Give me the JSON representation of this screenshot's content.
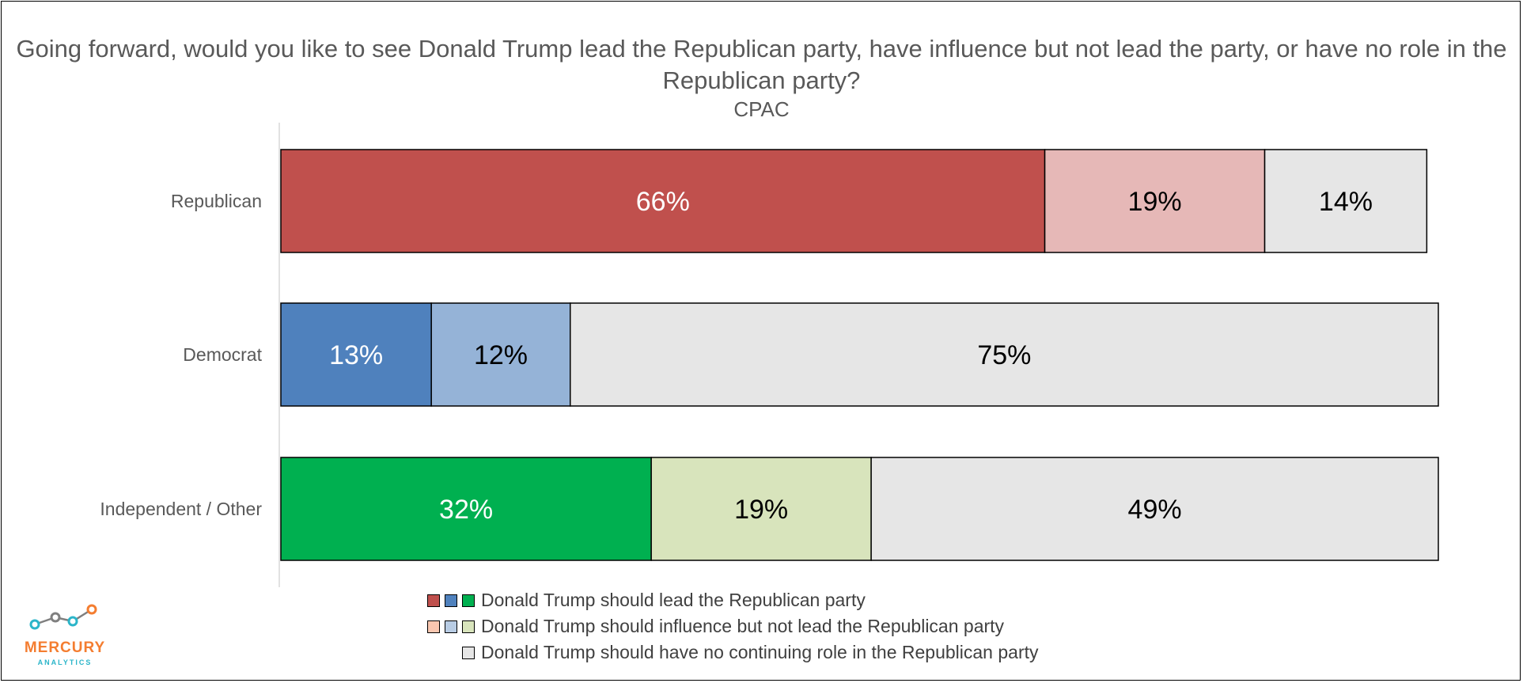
{
  "chart_data": {
    "type": "bar",
    "orientation": "horizontal",
    "stacked": true,
    "title": "Going forward, would you like to see Donald Trump lead the Republican party, have influence but not lead the party, or have no role in the Republican party?",
    "subtitle": "CPAC",
    "categories": [
      "Republican",
      "Democrat",
      "Independent / Other"
    ],
    "series": [
      {
        "name": "Donald Trump should lead the Republican party",
        "values": [
          66,
          13,
          32
        ],
        "colors": [
          "#c0504d",
          "#4f81bd",
          "#00b050"
        ],
        "label_color": "#ffffff"
      },
      {
        "name": "Donald Trump should influence but not lead the Republican party",
        "values": [
          19,
          12,
          19
        ],
        "colors": [
          "#e6b8b7",
          "#95b3d7",
          "#d8e4bc"
        ],
        "label_color": "#000000"
      },
      {
        "name": "Donald Trump should have no continuing role in the Republican party",
        "values": [
          14,
          75,
          49
        ],
        "colors": [
          "#e6e6e6",
          "#e6e6e6",
          "#e6e6e6"
        ],
        "label_color": "#000000"
      }
    ],
    "value_suffix": "%",
    "xlim": [
      0,
      100
    ],
    "grid": false,
    "legend": "bottom"
  },
  "legend": [
    {
      "label": "Donald Trump should lead the Republican party",
      "swatches": [
        "#c0504d",
        "#4f81bd",
        "#00b050"
      ]
    },
    {
      "label": "Donald Trump should influence but not lead the Republican party",
      "swatches": [
        "#fac7b0",
        "#b8cce4",
        "#d8e4bc"
      ]
    },
    {
      "label": "Donald Trump should have no continuing role in the Republican party",
      "swatches": [
        "#e6e6e6"
      ]
    }
  ],
  "logo": {
    "name": "MERCURY",
    "tagline": "ANALYTICS",
    "colors": [
      "#2bb5c9",
      "#7f7f7f",
      "#f47d30"
    ]
  }
}
